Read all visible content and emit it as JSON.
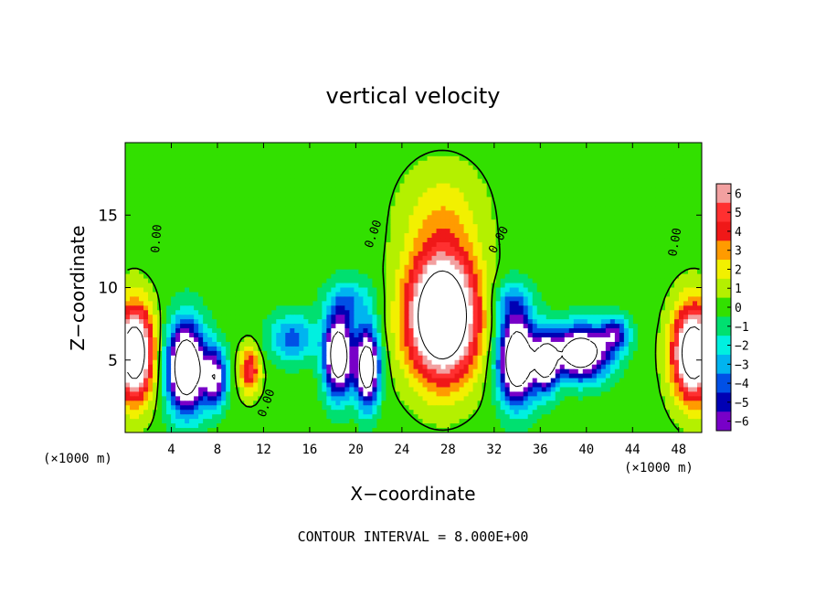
{
  "chart_data": {
    "type": "heatmap",
    "title": "vertical velocity",
    "xlabel": "X−coordinate",
    "ylabel": "Z−coordinate",
    "x_unit_left": "(×1000 m)",
    "x_unit_right": "(×1000 m)",
    "xlim": [
      0,
      50
    ],
    "ylim": [
      0,
      20
    ],
    "x_ticks": [
      4,
      8,
      12,
      16,
      20,
      24,
      28,
      32,
      36,
      40,
      44,
      48
    ],
    "y_ticks": [
      5,
      10,
      15
    ],
    "colorbar": {
      "levels": [
        6,
        5,
        4,
        3,
        2,
        1,
        0,
        -1,
        -2,
        -3,
        -4,
        -5,
        -6
      ],
      "tick_labels": [
        "6",
        "5",
        "4",
        "3",
        "2",
        "1",
        "0",
        "−1",
        "−2",
        "−3",
        "−4",
        "−5",
        "−6"
      ],
      "colors": [
        "#f2a0a0",
        "#ff3030",
        "#f01818",
        "#ff9b00",
        "#f2f000",
        "#b4f000",
        "#32e000",
        "#00e070",
        "#00f0e0",
        "#00b4f0",
        "#0050e6",
        "#0000b4",
        "#7800c8"
      ]
    },
    "contour_labels": [
      "0.00",
      "0.00",
      "0.00",
      "0.00",
      "0.00"
    ],
    "footer": "CONTOUR INTERVAL = 8.000E+00",
    "features": [
      {
        "x": 27.5,
        "z": 8,
        "sx": 3.0,
        "sz": 4.2,
        "amp": 13
      },
      {
        "x": 0.8,
        "z": 5.5,
        "sx": 1.6,
        "sz": 3.2,
        "amp": 11
      },
      {
        "x": 49.3,
        "z": 5.5,
        "sx": 1.8,
        "sz": 3.2,
        "amp": 11
      },
      {
        "x": 10.8,
        "z": 4.3,
        "sx": 0.9,
        "sz": 1.6,
        "amp": 5
      },
      {
        "x": 27.5,
        "z": 15,
        "sx": 3.5,
        "sz": 3.5,
        "amp": 2
      },
      {
        "x": 5.3,
        "z": 4.5,
        "sx": 1.6,
        "sz": 3.0,
        "amp": -12
      },
      {
        "x": 7.8,
        "z": 3.8,
        "sx": 1.0,
        "sz": 2.0,
        "amp": -7
      },
      {
        "x": 14.5,
        "z": 6.5,
        "sx": 2.0,
        "sz": 1.6,
        "amp": -4
      },
      {
        "x": 18.5,
        "z": 5.3,
        "sx": 1.2,
        "sz": 2.7,
        "amp": -11
      },
      {
        "x": 21.0,
        "z": 4.5,
        "sx": 1.0,
        "sz": 2.6,
        "amp": -11
      },
      {
        "x": 34.0,
        "z": 5.0,
        "sx": 1.6,
        "sz": 2.9,
        "amp": -12
      },
      {
        "x": 36.5,
        "z": 4.8,
        "sx": 1.0,
        "sz": 2.0,
        "amp": -8
      },
      {
        "x": 39.5,
        "z": 5.5,
        "sx": 2.4,
        "sz": 1.8,
        "amp": -11
      },
      {
        "x": 42.5,
        "z": 6.8,
        "sx": 1.2,
        "sz": 1.2,
        "amp": -5
      },
      {
        "x": 19.5,
        "z": 9.0,
        "sx": 2.0,
        "sz": 1.6,
        "amp": -3
      },
      {
        "x": 33.5,
        "z": 9.0,
        "sx": 1.6,
        "sz": 1.6,
        "amp": -3
      }
    ]
  }
}
